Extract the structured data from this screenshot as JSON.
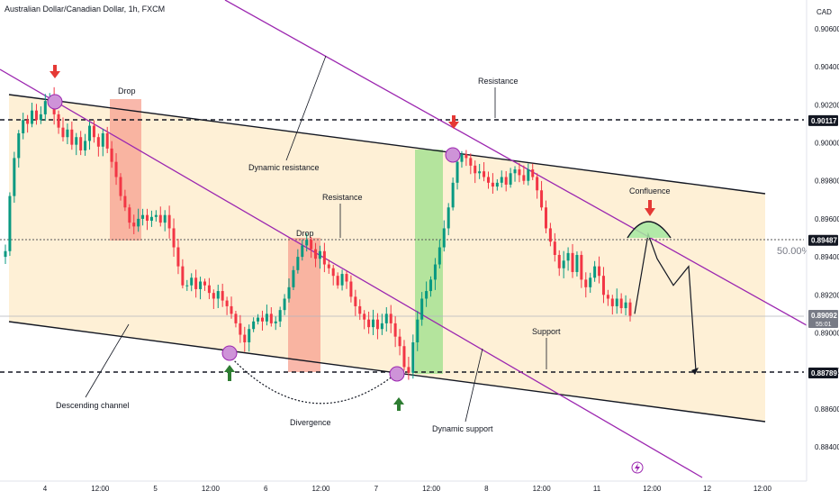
{
  "header": {
    "title": "Australian Dollar/Canadian Dollar, 1h, FXCM",
    "currency": "CAD"
  },
  "price_tags": [
    {
      "value": "0.90117",
      "bg": "#131722",
      "fg": "#ffffff"
    },
    {
      "value": "0.89487",
      "bg": "#131722",
      "fg": "#ffffff"
    },
    {
      "value": "0.89092",
      "sub": "55:01",
      "bg": "#787b86",
      "fg": "#ffffff"
    },
    {
      "value": "0.88789",
      "bg": "#131722",
      "fg": "#ffffff"
    }
  ],
  "fib_label": "50.00%",
  "annotations": {
    "drop1": "Drop",
    "drop2": "Drop",
    "resistance_top": "Resistance",
    "resistance_mid": "Resistance",
    "dynamic_resistance": "Dynamic resistance",
    "confluence": "Confluence",
    "support": "Support",
    "dynamic_support": "Dynamic support",
    "descending_channel": "Descending channel",
    "divergence": "Divergence"
  },
  "colors": {
    "up": "#089981",
    "down": "#f23645",
    "channel_fill": "#fde9c4",
    "purple_line": "#9c27b0",
    "drop_box": "#f7a08f",
    "rally_box": "#9be08a",
    "circle": "#ce93d8",
    "confluence_arc": "#a5e8a0",
    "arrow_red": "#e53935",
    "arrow_green": "#2e7d32"
  },
  "chart_data": {
    "type": "candlestick",
    "symbol": "AUDCAD",
    "timeframe": "1h",
    "y_ticks": [
      "0.90600",
      "0.90400",
      "0.90200",
      "0.90000",
      "0.89800",
      "0.89600",
      "0.89400",
      "0.89200",
      "0.89000",
      "0.88800",
      "0.88600",
      "0.88400"
    ],
    "x_ticks": [
      "4",
      "12:00",
      "5",
      "12:00",
      "6",
      "12:00",
      "7",
      "12:00",
      "8",
      "12:00",
      "11",
      "12:00",
      "12",
      "12:00"
    ],
    "ylim": [
      0.8832,
      0.9072
    ],
    "levels": {
      "resistance": 0.90117,
      "mid_resistance": 0.89487,
      "support": 0.88789,
      "current": 0.89092
    },
    "close_path": [
      0.8943,
      0.8972,
      0.8992,
      0.9005,
      0.9012,
      0.901,
      0.9017,
      0.9012,
      0.9015,
      0.9022,
      0.9024,
      0.9015,
      0.9008,
      0.9003,
      0.9007,
      0.8999,
      0.9003,
      0.8996,
      0.9001,
      0.9009,
      0.9003,
      0.8998,
      0.9005,
      0.8997,
      0.899,
      0.8982,
      0.8972,
      0.8966,
      0.8958,
      0.8956,
      0.896,
      0.8962,
      0.8959,
      0.8961,
      0.8962,
      0.8958,
      0.8962,
      0.8955,
      0.8945,
      0.8935,
      0.8925,
      0.8925,
      0.8929,
      0.8923,
      0.8927,
      0.8925,
      0.8921,
      0.8918,
      0.8922,
      0.8917,
      0.8914,
      0.891,
      0.8905,
      0.8899,
      0.8895,
      0.8902,
      0.8906,
      0.8908,
      0.8906,
      0.891,
      0.8905,
      0.8906,
      0.8912,
      0.8918,
      0.8924,
      0.8933,
      0.894,
      0.8946,
      0.8949,
      0.8944,
      0.8939,
      0.8943,
      0.8936,
      0.8934,
      0.893,
      0.8925,
      0.8931,
      0.8927,
      0.8919,
      0.8914,
      0.891,
      0.8907,
      0.8903,
      0.8907,
      0.8902,
      0.8905,
      0.891,
      0.8905,
      0.8898,
      0.8893,
      0.8882,
      0.8879,
      0.8895,
      0.8907,
      0.8918,
      0.8922,
      0.8928,
      0.8936,
      0.8945,
      0.8955,
      0.8966,
      0.8979,
      0.899,
      0.8994,
      0.8992,
      0.8988,
      0.8984,
      0.8985,
      0.8982,
      0.8979,
      0.8977,
      0.8979,
      0.8982,
      0.8978,
      0.8984,
      0.8986,
      0.8983,
      0.898,
      0.8986,
      0.8982,
      0.8975,
      0.8966,
      0.8955,
      0.8948,
      0.8941,
      0.8934,
      0.8938,
      0.8942,
      0.8932,
      0.8941,
      0.8928,
      0.8924,
      0.8929,
      0.8935,
      0.893,
      0.892,
      0.8918,
      0.8914,
      0.8918,
      0.8913,
      0.8916,
      0.8909
    ],
    "projection": [
      0.891,
      0.8952,
      0.8939,
      0.8925,
      0.8935,
      0.888
    ]
  }
}
